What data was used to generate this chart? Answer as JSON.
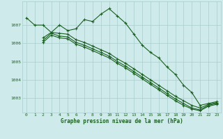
{
  "title": "Graphe pression niveau de la mer (hPa)",
  "bg_color": "#ceeaea",
  "grid_color": "#a8cccc",
  "line_color": "#1a6020",
  "xlim": [
    -0.5,
    23.5
  ],
  "ylim": [
    1002.2,
    1008.3
  ],
  "yticks": [
    1003,
    1004,
    1005,
    1006,
    1007
  ],
  "xticks": [
    0,
    1,
    2,
    3,
    4,
    5,
    6,
    7,
    8,
    9,
    10,
    11,
    12,
    13,
    14,
    15,
    16,
    17,
    18,
    19,
    20,
    21,
    22,
    23
  ],
  "series1_x": [
    0,
    1,
    2,
    3,
    4,
    5,
    6,
    7,
    8,
    9,
    10,
    11,
    12,
    13,
    14,
    15,
    16,
    17,
    18,
    19,
    20,
    21,
    22,
    23
  ],
  "series1_y": [
    1007.4,
    1007.0,
    1007.0,
    1006.6,
    1007.0,
    1006.7,
    1006.8,
    1007.3,
    1007.2,
    1007.6,
    1007.9,
    1007.5,
    1007.1,
    1006.5,
    1005.9,
    1005.5,
    1005.2,
    1004.7,
    1004.3,
    1003.7,
    1003.3,
    1002.6,
    1002.7,
    1002.8
  ],
  "series2_x": [
    2,
    3,
    4,
    5,
    6,
    7,
    8,
    9,
    10,
    11,
    12,
    13,
    14,
    15,
    16,
    17,
    18,
    19,
    20,
    21,
    22,
    23
  ],
  "series2_y": [
    1006.3,
    1006.6,
    1006.55,
    1006.5,
    1006.2,
    1006.05,
    1005.85,
    1005.65,
    1005.45,
    1005.15,
    1004.9,
    1004.6,
    1004.3,
    1004.0,
    1003.7,
    1003.4,
    1003.1,
    1002.85,
    1002.6,
    1002.45,
    1002.65,
    1002.75
  ],
  "series3_x": [
    2,
    3,
    4,
    5,
    6,
    7,
    8,
    9,
    10,
    11,
    12,
    13,
    14,
    15,
    16,
    17,
    18,
    19,
    20,
    21,
    22,
    23
  ],
  "series3_y": [
    1006.15,
    1006.55,
    1006.4,
    1006.35,
    1006.05,
    1005.9,
    1005.7,
    1005.5,
    1005.3,
    1005.0,
    1004.75,
    1004.45,
    1004.15,
    1003.85,
    1003.55,
    1003.25,
    1002.95,
    1002.7,
    1002.45,
    1002.35,
    1002.6,
    1002.7
  ],
  "series4_x": [
    2,
    3,
    4,
    5,
    6,
    7,
    8,
    9,
    10,
    11,
    12,
    13,
    14,
    15,
    16,
    17,
    18,
    19,
    20,
    21,
    22,
    23
  ],
  "series4_y": [
    1006.05,
    1006.45,
    1006.3,
    1006.25,
    1005.95,
    1005.8,
    1005.6,
    1005.4,
    1005.2,
    1004.9,
    1004.65,
    1004.35,
    1004.05,
    1003.75,
    1003.45,
    1003.15,
    1002.85,
    1002.6,
    1002.4,
    1002.3,
    1002.55,
    1002.65
  ]
}
